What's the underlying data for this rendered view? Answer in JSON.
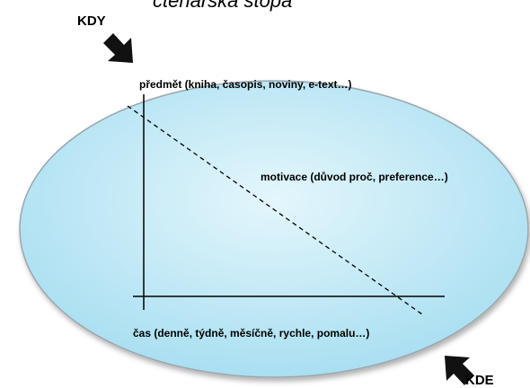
{
  "title": "čtenářská stopa",
  "labels": {
    "when": "KDY",
    "where": "KDE",
    "subject": "předmět (kniha, časopis, noviny, e-text…)",
    "motivation": "motivace (důvod proč, preference…)",
    "time": "čas (denně, týdně, měsíčně, rychle, pomalu…)"
  }
}
